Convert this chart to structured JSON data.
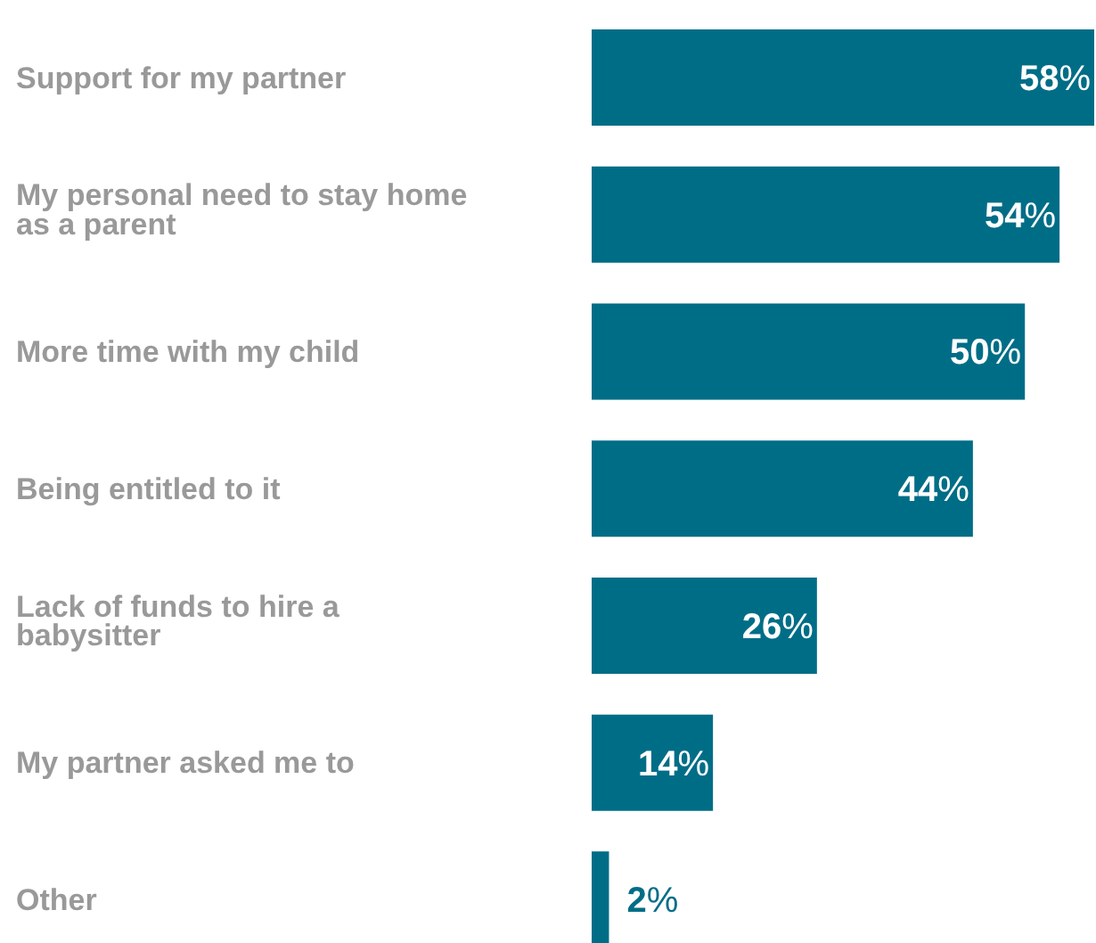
{
  "chart_data": {
    "type": "bar",
    "orientation": "horizontal",
    "categories": [
      "Support for my partner",
      "My personal need to stay home as a parent",
      "More time with my child",
      "Being entitled to it",
      "Lack of funds to hire a babysitter",
      "My partner asked me to",
      "Other"
    ],
    "values": [
      58,
      54,
      50,
      44,
      26,
      14,
      2
    ],
    "value_labels": [
      "58%",
      "54%",
      "50%",
      "44%",
      "26%",
      "14%",
      "2%"
    ],
    "color": "#006d87",
    "grid": false,
    "legend": false
  }
}
